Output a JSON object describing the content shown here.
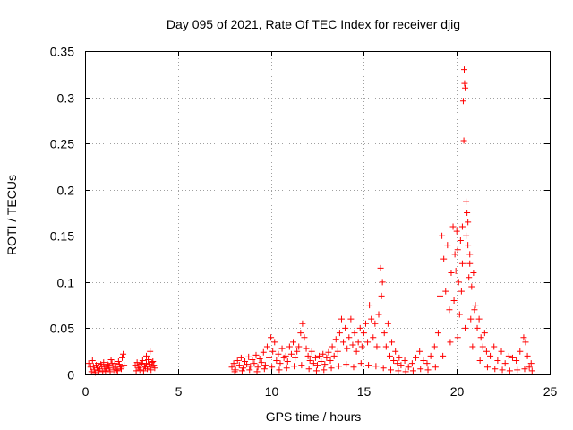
{
  "chart_data": {
    "type": "scatter",
    "title": "Day 095 of 2021, Rate Of TEC Index for receiver djig",
    "xlabel": "GPS time / hours",
    "ylabel": "ROTI / TECUs",
    "xlim": [
      0,
      25
    ],
    "ylim": [
      0,
      0.35
    ],
    "x_ticks": [
      0,
      5,
      10,
      15,
      20,
      25
    ],
    "x_tick_labels": [
      "0",
      "5",
      "10",
      "15",
      "20",
      "25"
    ],
    "y_ticks": [
      0,
      0.05,
      0.1,
      0.15,
      0.2,
      0.25,
      0.3,
      0.35
    ],
    "y_tick_labels": [
      "0",
      "0.05",
      "0.1",
      "0.15",
      "0.2",
      "0.25",
      "0.3",
      "0.35"
    ],
    "grid": true,
    "marker": "plus",
    "color": "#ff0000",
    "series": [
      {
        "name": "ROTI",
        "points": [
          [
            0.2,
            0.012
          ],
          [
            0.3,
            0.008
          ],
          [
            0.4,
            0.015
          ],
          [
            0.5,
            0.005
          ],
          [
            0.6,
            0.01
          ],
          [
            0.7,
            0.012
          ],
          [
            0.8,
            0.006
          ],
          [
            0.9,
            0.009
          ],
          [
            1.0,
            0.013
          ],
          [
            1.1,
            0.004
          ],
          [
            1.2,
            0.011
          ],
          [
            1.3,
            0.007
          ],
          [
            1.4,
            0.016
          ],
          [
            1.5,
            0.009
          ],
          [
            1.6,
            0.012
          ],
          [
            1.7,
            0.005
          ],
          [
            1.8,
            0.014
          ],
          [
            1.9,
            0.008
          ],
          [
            2.0,
            0.018
          ],
          [
            2.1,
            0.01
          ],
          [
            0.35,
            0.003
          ],
          [
            0.55,
            0.002
          ],
          [
            0.75,
            0.004
          ],
          [
            0.95,
            0.003
          ],
          [
            1.15,
            0.006
          ],
          [
            1.35,
            0.003
          ],
          [
            1.55,
            0.005
          ],
          [
            1.75,
            0.004
          ],
          [
            1.95,
            0.006
          ],
          [
            2.05,
            0.022
          ],
          [
            0.45,
            0.009
          ],
          [
            0.65,
            0.007
          ],
          [
            0.85,
            0.011
          ],
          [
            1.05,
            0.008
          ],
          [
            1.25,
            0.01
          ],
          [
            1.45,
            0.012
          ],
          [
            1.65,
            0.009
          ],
          [
            1.85,
            0.011
          ],
          [
            2.7,
            0.01
          ],
          [
            2.8,
            0.013
          ],
          [
            2.9,
            0.007
          ],
          [
            3.0,
            0.011
          ],
          [
            3.1,
            0.015
          ],
          [
            3.2,
            0.009
          ],
          [
            3.3,
            0.012
          ],
          [
            3.4,
            0.016
          ],
          [
            3.5,
            0.008
          ],
          [
            3.6,
            0.013
          ],
          [
            3.7,
            0.01
          ],
          [
            3.5,
            0.025
          ],
          [
            3.3,
            0.02
          ],
          [
            2.75,
            0.004
          ],
          [
            2.95,
            0.005
          ],
          [
            3.15,
            0.004
          ],
          [
            3.35,
            0.006
          ],
          [
            3.55,
            0.005
          ],
          [
            3.75,
            0.007
          ],
          [
            2.85,
            0.009
          ],
          [
            3.05,
            0.012
          ],
          [
            3.25,
            0.008
          ],
          [
            3.45,
            0.011
          ],
          [
            3.65,
            0.014
          ],
          [
            7.9,
            0.008
          ],
          [
            8.0,
            0.012
          ],
          [
            8.1,
            0.005
          ],
          [
            8.2,
            0.015
          ],
          [
            8.3,
            0.01
          ],
          [
            8.4,
            0.018
          ],
          [
            8.5,
            0.007
          ],
          [
            8.6,
            0.014
          ],
          [
            8.7,
            0.011
          ],
          [
            8.8,
            0.019
          ],
          [
            8.9,
            0.009
          ],
          [
            9.0,
            0.016
          ],
          [
            9.1,
            0.012
          ],
          [
            9.2,
            0.021
          ],
          [
            9.3,
            0.008
          ],
          [
            9.4,
            0.017
          ],
          [
            9.5,
            0.013
          ],
          [
            9.6,
            0.024
          ],
          [
            9.7,
            0.01
          ],
          [
            9.8,
            0.03
          ],
          [
            9.9,
            0.018
          ],
          [
            10.0,
            0.04
          ],
          [
            10.1,
            0.025
          ],
          [
            10.2,
            0.035
          ],
          [
            10.3,
            0.015
          ],
          [
            10.4,
            0.022
          ],
          [
            10.5,
            0.012
          ],
          [
            10.6,
            0.028
          ],
          [
            10.7,
            0.018
          ],
          [
            10.8,
            0.02
          ],
          [
            10.9,
            0.014
          ],
          [
            11.0,
            0.03
          ],
          [
            11.1,
            0.022
          ],
          [
            11.2,
            0.035
          ],
          [
            11.3,
            0.018
          ],
          [
            11.4,
            0.025
          ],
          [
            11.5,
            0.03
          ],
          [
            11.6,
            0.045
          ],
          [
            11.7,
            0.055
          ],
          [
            11.8,
            0.04
          ],
          [
            11.9,
            0.028
          ],
          [
            12.0,
            0.02
          ],
          [
            12.1,
            0.015
          ],
          [
            12.2,
            0.025
          ],
          [
            12.3,
            0.012
          ],
          [
            12.4,
            0.018
          ],
          [
            12.5,
            0.01
          ],
          [
            12.6,
            0.02
          ],
          [
            12.7,
            0.014
          ],
          [
            12.8,
            0.022
          ],
          [
            12.9,
            0.011
          ],
          [
            13.0,
            0.018
          ],
          [
            13.1,
            0.024
          ],
          [
            13.2,
            0.015
          ],
          [
            13.3,
            0.03
          ],
          [
            13.4,
            0.02
          ],
          [
            13.5,
            0.038
          ],
          [
            13.6,
            0.025
          ],
          [
            13.7,
            0.045
          ],
          [
            13.8,
            0.06
          ],
          [
            13.9,
            0.035
          ],
          [
            14.0,
            0.05
          ],
          [
            14.1,
            0.028
          ],
          [
            14.2,
            0.04
          ],
          [
            14.3,
            0.06
          ],
          [
            14.4,
            0.032
          ],
          [
            14.5,
            0.045
          ],
          [
            14.6,
            0.025
          ],
          [
            14.7,
            0.035
          ],
          [
            14.8,
            0.05
          ],
          [
            14.9,
            0.03
          ],
          [
            15.0,
            0.045
          ],
          [
            15.1,
            0.055
          ],
          [
            15.2,
            0.035
          ],
          [
            15.3,
            0.075
          ],
          [
            15.4,
            0.06
          ],
          [
            15.5,
            0.04
          ],
          [
            15.6,
            0.055
          ],
          [
            15.7,
            0.03
          ],
          [
            15.8,
            0.065
          ],
          [
            15.9,
            0.115
          ],
          [
            16.0,
            0.1
          ],
          [
            15.95,
            0.085
          ],
          [
            16.1,
            0.045
          ],
          [
            16.2,
            0.03
          ],
          [
            16.3,
            0.055
          ],
          [
            16.4,
            0.02
          ],
          [
            16.5,
            0.035
          ],
          [
            16.6,
            0.015
          ],
          [
            16.7,
            0.025
          ],
          [
            16.8,
            0.012
          ],
          [
            16.9,
            0.018
          ],
          [
            17.0,
            0.01
          ],
          [
            17.2,
            0.015
          ],
          [
            17.4,
            0.008
          ],
          [
            17.6,
            0.012
          ],
          [
            17.8,
            0.018
          ],
          [
            18.0,
            0.025
          ],
          [
            18.2,
            0.015
          ],
          [
            18.4,
            0.012
          ],
          [
            18.6,
            0.02
          ],
          [
            18.8,
            0.03
          ],
          [
            19.0,
            0.045
          ],
          [
            19.1,
            0.085
          ],
          [
            19.2,
            0.15
          ],
          [
            19.3,
            0.125
          ],
          [
            19.4,
            0.09
          ],
          [
            19.5,
            0.14
          ],
          [
            19.6,
            0.07
          ],
          [
            19.7,
            0.11
          ],
          [
            19.8,
            0.16
          ],
          [
            19.9,
            0.13
          ],
          [
            20.0,
            0.155
          ],
          [
            20.1,
            0.1
          ],
          [
            20.2,
            0.145
          ],
          [
            20.3,
            0.12
          ],
          [
            20.35,
            0.296
          ],
          [
            20.4,
            0.33
          ],
          [
            20.42,
            0.315
          ],
          [
            20.45,
            0.31
          ],
          [
            20.38,
            0.253
          ],
          [
            20.5,
            0.187
          ],
          [
            20.55,
            0.175
          ],
          [
            20.6,
            0.165
          ],
          [
            20.7,
            0.13
          ],
          [
            20.8,
            0.095
          ],
          [
            20.9,
            0.11
          ],
          [
            21.0,
            0.075
          ],
          [
            21.1,
            0.05
          ],
          [
            21.2,
            0.06
          ],
          [
            21.3,
            0.04
          ],
          [
            21.4,
            0.03
          ],
          [
            21.5,
            0.045
          ],
          [
            21.6,
            0.025
          ],
          [
            21.8,
            0.02
          ],
          [
            22.0,
            0.03
          ],
          [
            22.2,
            0.015
          ],
          [
            22.4,
            0.025
          ],
          [
            22.6,
            0.012
          ],
          [
            22.8,
            0.02
          ],
          [
            23.0,
            0.018
          ],
          [
            23.2,
            0.015
          ],
          [
            23.4,
            0.025
          ],
          [
            23.6,
            0.04
          ],
          [
            23.7,
            0.035
          ],
          [
            23.8,
            0.02
          ],
          [
            24.0,
            0.012
          ],
          [
            23.9,
            0.008
          ],
          [
            8.05,
            0.003
          ],
          [
            8.45,
            0.004
          ],
          [
            8.85,
            0.005
          ],
          [
            9.25,
            0.003
          ],
          [
            9.65,
            0.006
          ],
          [
            10.05,
            0.008
          ],
          [
            10.45,
            0.005
          ],
          [
            10.85,
            0.007
          ],
          [
            11.25,
            0.009
          ],
          [
            11.65,
            0.01
          ],
          [
            12.05,
            0.006
          ],
          [
            12.45,
            0.004
          ],
          [
            12.85,
            0.005
          ],
          [
            13.25,
            0.007
          ],
          [
            13.65,
            0.009
          ],
          [
            14.05,
            0.011
          ],
          [
            14.45,
            0.008
          ],
          [
            14.85,
            0.012
          ],
          [
            15.25,
            0.01
          ],
          [
            15.65,
            0.009
          ],
          [
            16.05,
            0.007
          ],
          [
            16.45,
            0.005
          ],
          [
            16.85,
            0.004
          ],
          [
            17.25,
            0.003
          ],
          [
            17.65,
            0.004
          ],
          [
            18.05,
            0.006
          ],
          [
            18.45,
            0.005
          ],
          [
            18.85,
            0.008
          ],
          [
            19.25,
            0.02
          ],
          [
            19.65,
            0.035
          ],
          [
            20.05,
            0.04
          ],
          [
            20.45,
            0.05
          ],
          [
            20.85,
            0.03
          ],
          [
            21.25,
            0.015
          ],
          [
            21.65,
            0.008
          ],
          [
            22.05,
            0.006
          ],
          [
            22.45,
            0.005
          ],
          [
            22.85,
            0.004
          ],
          [
            23.25,
            0.005
          ],
          [
            23.65,
            0.006
          ],
          [
            24.05,
            0.004
          ],
          [
            19.85,
            0.08
          ],
          [
            20.15,
            0.065
          ],
          [
            20.25,
            0.09
          ],
          [
            20.65,
            0.105
          ],
          [
            20.75,
            0.06
          ],
          [
            20.95,
            0.07
          ],
          [
            19.95,
            0.112
          ],
          [
            20.05,
            0.135
          ],
          [
            20.3,
            0.16
          ],
          [
            20.5,
            0.15
          ],
          [
            20.6,
            0.14
          ],
          [
            20.7,
            0.12
          ]
        ]
      }
    ]
  }
}
